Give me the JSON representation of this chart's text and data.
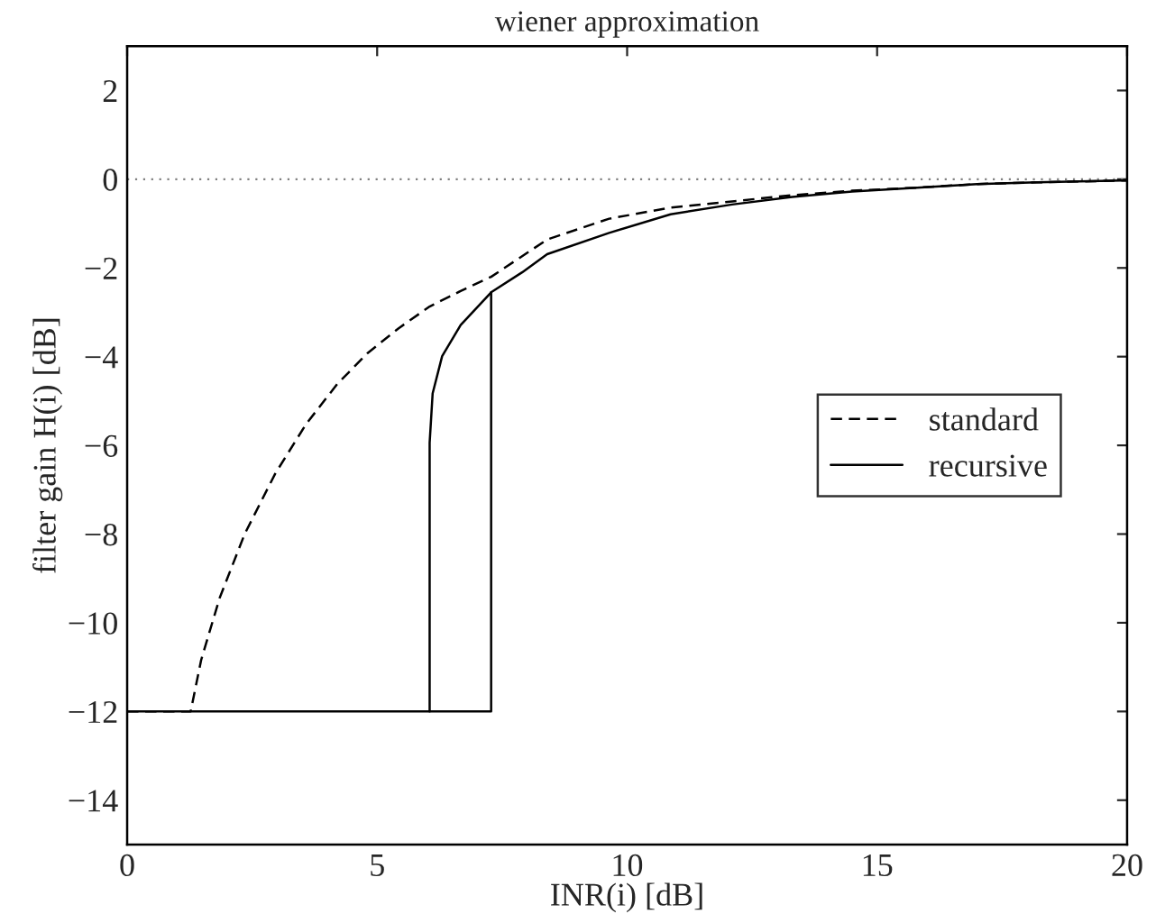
{
  "chart_data": {
    "type": "line",
    "title": "wiener approximation",
    "xlabel": "INR(i) [dB]",
    "ylabel": "filter gain H(i) [dB]",
    "xlim": [
      0,
      20
    ],
    "ylim": [
      -15,
      3
    ],
    "xticks": [
      0,
      5,
      10,
      15,
      20
    ],
    "yticks": [
      -14,
      -12,
      -10,
      -8,
      -6,
      -4,
      -2,
      0,
      2
    ],
    "grid": false,
    "legend": "right",
    "ref_lines": [
      {
        "axis": "y",
        "value": 0,
        "color": "#808080",
        "line_style": "dotted"
      }
    ],
    "series": [
      {
        "name": "standard",
        "color": "#000000",
        "line_style": "dashed",
        "x": [
          0,
          1.27,
          1.48,
          1.85,
          2.35,
          2.96,
          3.58,
          4.2,
          4.81,
          5.43,
          6.05,
          6.67,
          7.28,
          8.4,
          9.64,
          10.87,
          12.1,
          13.3,
          14.5,
          15.8,
          17.0,
          18.2,
          19.9,
          20
        ],
        "values": [
          -12,
          -12,
          -10.84,
          -9.44,
          -8,
          -6.64,
          -5.52,
          -4.62,
          -3.92,
          -3.36,
          -2.87,
          -2.52,
          -2.2,
          -1.36,
          -0.89,
          -0.64,
          -0.5,
          -0.36,
          -0.26,
          -0.19,
          -0.11,
          -0.07,
          -0.03,
          -0.03
        ]
      },
      {
        "name": "recursive",
        "color": "#000000",
        "line_style": "solid",
        "x": [
          0,
          6.05,
          6.05,
          6.11,
          6.3,
          6.67,
          7.28,
          7.9,
          8.4,
          9.64,
          10.87,
          12.1,
          13.3,
          14.5,
          15.8,
          17.0,
          18.2,
          19.9,
          20
        ],
        "values": [
          -12,
          -12,
          -5.94,
          -4.83,
          -3.99,
          -3.29,
          -2.55,
          -2.1,
          -1.69,
          -1.21,
          -0.79,
          -0.57,
          -0.4,
          -0.28,
          -0.19,
          -0.11,
          -0.07,
          -0.03,
          -0.03
        ]
      },
      {
        "color": "#000000",
        "line_style": "solid",
        "x": [
          6.05,
          7.28,
          7.28
        ],
        "values": [
          -12,
          -12,
          -2.55
        ]
      }
    ]
  }
}
